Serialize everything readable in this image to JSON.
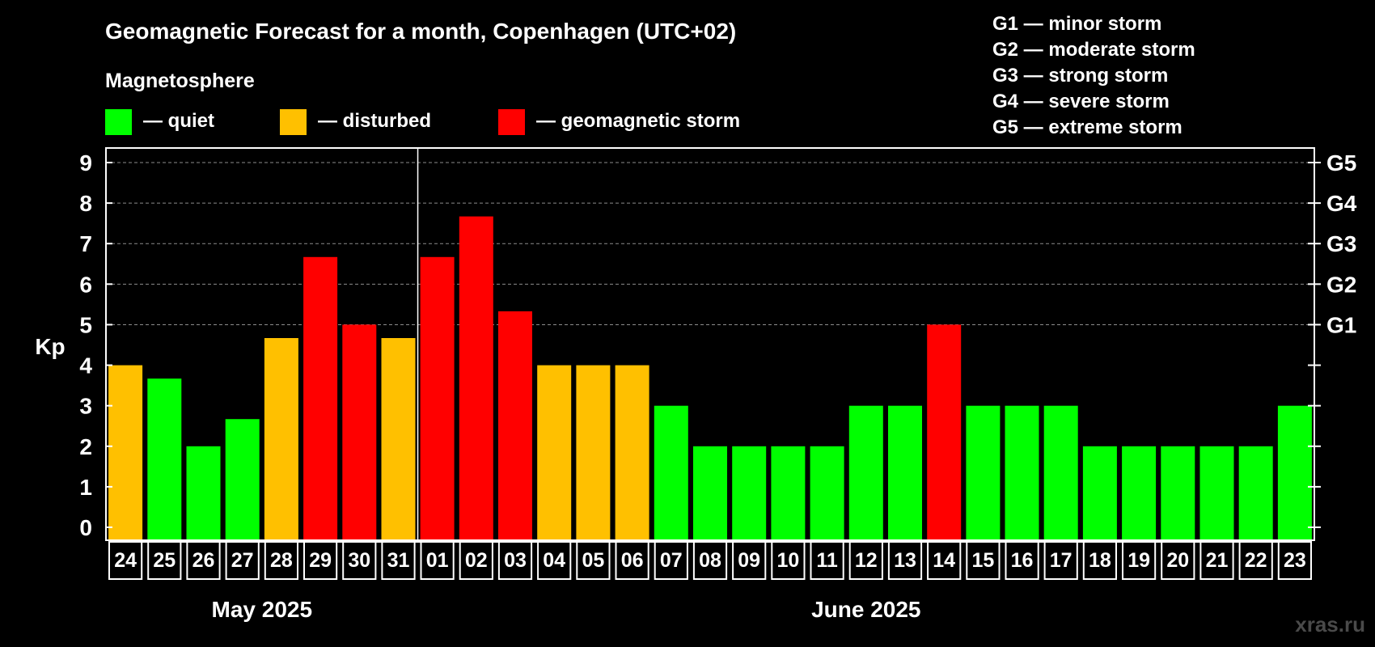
{
  "header": {
    "title": "Geomagnetic Forecast for a month, Copenhagen (UTC+02)",
    "subtitle": "Magnetosphere",
    "watermark": "xras.ru"
  },
  "legend": {
    "items": [
      {
        "label": "— quiet",
        "color": "#00ff00"
      },
      {
        "label": "— disturbed",
        "color": "#ffc000"
      },
      {
        "label": "— geomagnetic storm",
        "color": "#ff0000"
      }
    ],
    "g_scale": [
      "G1 — minor storm",
      "G2 — moderate storm",
      "G3 — strong storm",
      "G4 — severe storm",
      "G5 — extreme storm"
    ]
  },
  "chart_data": {
    "type": "bar",
    "ylabel": "Kp",
    "ylim": [
      0,
      9
    ],
    "y_ticks": [
      "0",
      "1",
      "2",
      "3",
      "4",
      "5",
      "6",
      "7",
      "8",
      "9"
    ],
    "right_axis_labels": [
      {
        "kp": 5,
        "label": "G1"
      },
      {
        "kp": 6,
        "label": "G2"
      },
      {
        "kp": 7,
        "label": "G3"
      },
      {
        "kp": 8,
        "label": "G4"
      },
      {
        "kp": 9,
        "label": "G5"
      }
    ],
    "grid": "dashed horizontal at Kp 5-9",
    "month_labels": [
      {
        "label": "May 2025",
        "first_index": 0,
        "last_index": 7
      },
      {
        "label": "June 2025",
        "first_index": 8,
        "last_index": 30
      }
    ],
    "month_divider_after_index": 7,
    "categories": [
      "24",
      "25",
      "26",
      "27",
      "28",
      "29",
      "30",
      "31",
      "01",
      "02",
      "03",
      "04",
      "05",
      "06",
      "07",
      "08",
      "09",
      "10",
      "11",
      "12",
      "13",
      "14",
      "15",
      "16",
      "17",
      "18",
      "19",
      "20",
      "21",
      "22",
      "23"
    ],
    "values": [
      4,
      3.67,
      2,
      2.67,
      4.67,
      6.67,
      5,
      4.67,
      6.67,
      7.67,
      5.33,
      4,
      4,
      4,
      3,
      2,
      2,
      2,
      2,
      3,
      3,
      5,
      3,
      3,
      3,
      2,
      2,
      2,
      2,
      2,
      3
    ],
    "status": [
      "disturbed",
      "quiet",
      "quiet",
      "quiet",
      "disturbed",
      "storm",
      "storm",
      "disturbed",
      "storm",
      "storm",
      "storm",
      "disturbed",
      "disturbed",
      "disturbed",
      "quiet",
      "quiet",
      "quiet",
      "quiet",
      "quiet",
      "quiet",
      "quiet",
      "storm",
      "quiet",
      "quiet",
      "quiet",
      "quiet",
      "quiet",
      "quiet",
      "quiet",
      "quiet",
      "quiet"
    ],
    "status_colors": {
      "quiet": "#00ff00",
      "disturbed": "#ffc000",
      "storm": "#ff0000"
    }
  }
}
